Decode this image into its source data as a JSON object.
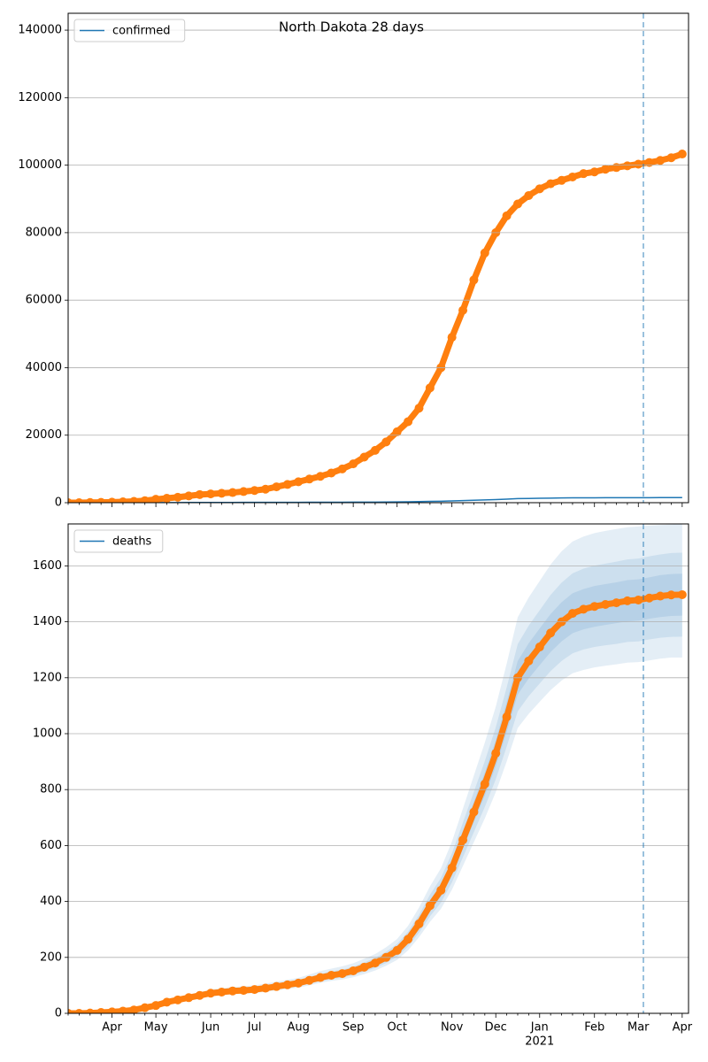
{
  "chart_data": [
    {
      "type": "line",
      "title": "North Dakota 28 days",
      "ylim": [
        0,
        145000
      ],
      "yticks": [
        0,
        20000,
        40000,
        60000,
        80000,
        100000,
        120000,
        140000
      ],
      "grid": true,
      "legend": "upper left",
      "series": [
        {
          "name": "confirmed",
          "color": "#1f77b4",
          "values": [
            0,
            0,
            1,
            3,
            5,
            8,
            12,
            20,
            28,
            40,
            48,
            56,
            64,
            72,
            76,
            80,
            82,
            85,
            90,
            96,
            102,
            108,
            118,
            128,
            136,
            142,
            152,
            165,
            180,
            200,
            225,
            265,
            320,
            385,
            440,
            520,
            620,
            720,
            820,
            930,
            1060,
            1200,
            1260,
            1310,
            1360,
            1400,
            1430,
            1445,
            1455,
            1462,
            1468,
            1475,
            1478,
            1485,
            1492,
            1496,
            1497
          ]
        }
      ],
      "observed": {
        "color": "#ff7f0e",
        "values": [
          0,
          0,
          50,
          100,
          150,
          250,
          400,
          600,
          1000,
          1300,
          1600,
          2000,
          2400,
          2600,
          2800,
          3000,
          3300,
          3600,
          4000,
          4700,
          5400,
          6200,
          7000,
          7800,
          8800,
          10000,
          11500,
          13500,
          15500,
          18000,
          21000,
          24000,
          28000,
          34000,
          40000,
          49000,
          57000,
          66000,
          74000,
          80000,
          85000,
          88500,
          91000,
          93000,
          94500,
          95500,
          96500,
          97500,
          98000,
          98800,
          99300,
          99800,
          100300,
          100800,
          101400,
          102200,
          103300
        ]
      }
    },
    {
      "type": "line",
      "categories": [
        null,
        null,
        null,
        null,
        "Apr",
        null,
        null,
        null,
        "May",
        null,
        null,
        null,
        null,
        "Jun",
        null,
        null,
        null,
        "Jul",
        null,
        null,
        null,
        "Aug",
        null,
        null,
        null,
        null,
        "Sep",
        null,
        null,
        null,
        "Oct",
        null,
        null,
        null,
        null,
        "Nov",
        null,
        null,
        null,
        "Dec",
        null,
        null,
        null,
        "Jan",
        null,
        null,
        null,
        null,
        "Feb",
        null,
        null,
        null,
        "Mar",
        null,
        null,
        null,
        "Apr"
      ],
      "year_label": "2021",
      "ylim": [
        0,
        1750
      ],
      "yticks": [
        0,
        200,
        400,
        600,
        800,
        1000,
        1200,
        1400,
        1600
      ],
      "grid": true,
      "legend": "upper left",
      "series": [
        {
          "name": "deaths",
          "color": "#1f77b4",
          "values": [
            0,
            0,
            1,
            3,
            5,
            8,
            12,
            20,
            28,
            40,
            48,
            56,
            64,
            72,
            76,
            80,
            82,
            85,
            90,
            96,
            102,
            108,
            118,
            128,
            136,
            142,
            152,
            165,
            180,
            200,
            225,
            265,
            320,
            385,
            440,
            520,
            620,
            720,
            820,
            930,
            1060,
            1200,
            1260,
            1310,
            1360,
            1400,
            1430,
            1445,
            1455,
            1462,
            1468,
            1475,
            1478,
            1485,
            1492,
            1496,
            1497
          ]
        }
      ],
      "observed": {
        "color": "#ff7f0e",
        "values": [
          0,
          0,
          1,
          3,
          5,
          8,
          12,
          20,
          28,
          40,
          48,
          56,
          64,
          72,
          76,
          80,
          82,
          85,
          90,
          96,
          102,
          108,
          118,
          128,
          136,
          142,
          152,
          165,
          180,
          200,
          225,
          265,
          320,
          385,
          440,
          520,
          620,
          720,
          820,
          930,
          1060,
          1200,
          1260,
          1310,
          1360,
          1400,
          1430,
          1445,
          1455,
          1462,
          1468,
          1475,
          1478,
          1485,
          1492,
          1496,
          1497
        ]
      },
      "band_color": "#1f77b4",
      "bands": [
        {
          "upper": [
            0,
            0,
            1,
            4,
            6,
            9,
            14,
            24,
            33,
            47,
            57,
            66,
            76,
            85,
            90,
            94,
            97,
            100,
            106,
            113,
            120,
            127,
            139,
            151,
            160,
            168,
            179,
            195,
            212,
            236,
            266,
            313,
            378,
            454,
            519,
            614,
            732,
            850,
            968,
            1097,
            1251,
            1416,
            1487,
            1546,
            1605,
            1652,
            1687,
            1705,
            1717,
            1725,
            1732,
            1738,
            1741,
            1744,
            1746,
            1748,
            1749
          ],
          "lower": [
            0,
            0,
            1,
            3,
            4,
            7,
            10,
            17,
            24,
            34,
            41,
            48,
            54,
            61,
            65,
            68,
            70,
            72,
            77,
            82,
            87,
            92,
            100,
            109,
            116,
            121,
            129,
            140,
            153,
            170,
            191,
            225,
            272,
            327,
            374,
            442,
            527,
            612,
            697,
            791,
            901,
            1020,
            1071,
            1114,
            1156,
            1190,
            1216,
            1228,
            1237,
            1243,
            1248,
            1254,
            1256,
            1262,
            1268,
            1272,
            1272
          ]
        },
        {
          "upper": [
            0,
            0,
            1,
            3,
            6,
            9,
            13,
            22,
            31,
            44,
            53,
            62,
            70,
            79,
            84,
            88,
            90,
            94,
            99,
            106,
            112,
            119,
            130,
            141,
            150,
            156,
            167,
            182,
            198,
            220,
            248,
            292,
            352,
            424,
            484,
            572,
            682,
            792,
            902,
            1023,
            1166,
            1320,
            1386,
            1441,
            1496,
            1540,
            1573,
            1590,
            1601,
            1608,
            1615,
            1623,
            1626,
            1634,
            1641,
            1646,
            1647
          ],
          "lower": [
            0,
            0,
            1,
            3,
            5,
            7,
            11,
            18,
            25,
            36,
            43,
            50,
            58,
            65,
            68,
            72,
            74,
            77,
            81,
            86,
            92,
            97,
            106,
            115,
            122,
            128,
            137,
            149,
            162,
            180,
            203,
            239,
            288,
            347,
            396,
            468,
            558,
            648,
            738,
            837,
            954,
            1080,
            1134,
            1179,
            1224,
            1260,
            1287,
            1301,
            1310,
            1316,
            1321,
            1328,
            1330,
            1337,
            1343,
            1346,
            1347
          ]
        },
        {
          "upper": [
            0,
            0,
            1,
            3,
            5,
            8,
            13,
            21,
            29,
            42,
            50,
            59,
            67,
            76,
            80,
            84,
            86,
            89,
            95,
            101,
            107,
            113,
            124,
            134,
            143,
            149,
            160,
            173,
            189,
            210,
            236,
            278,
            336,
            404,
            462,
            546,
            651,
            756,
            861,
            977,
            1113,
            1260,
            1323,
            1376,
            1428,
            1470,
            1502,
            1517,
            1528,
            1535,
            1541,
            1549,
            1552,
            1559,
            1567,
            1571,
            1572
          ],
          "lower": [
            0,
            0,
            1,
            3,
            5,
            8,
            11,
            19,
            27,
            38,
            46,
            53,
            61,
            68,
            72,
            76,
            78,
            81,
            86,
            91,
            97,
            103,
            112,
            122,
            129,
            135,
            144,
            157,
            171,
            190,
            214,
            252,
            304,
            366,
            418,
            494,
            589,
            684,
            779,
            884,
            1007,
            1140,
            1197,
            1245,
            1292,
            1330,
            1359,
            1373,
            1382,
            1389,
            1395,
            1401,
            1404,
            1411,
            1417,
            1421,
            1422
          ]
        }
      ]
    }
  ]
}
